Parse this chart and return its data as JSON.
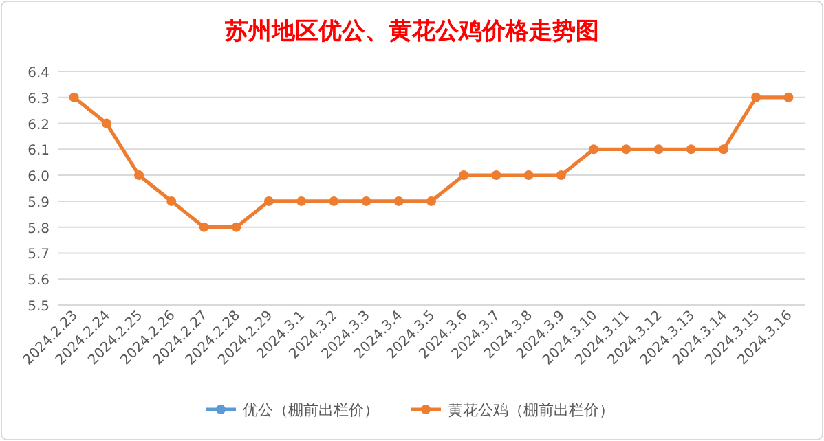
{
  "chart_data": {
    "type": "line",
    "title": "苏州地区优公、黄花公鸡价格走势图",
    "categories": [
      "2024.2.23",
      "2024.2.24",
      "2024.2.25",
      "2024.2.26",
      "2024.2.27",
      "2024.2.28",
      "2024.2.29",
      "2024.3.1",
      "2024.3.2",
      "2024.3.3",
      "2024.3.4",
      "2024.3.5",
      "2024.3.6",
      "2024.3.7",
      "2024.3.8",
      "2024.3.9",
      "2024.3.10",
      "2024.3.11",
      "2024.3.12",
      "2024.3.13",
      "2024.3.14",
      "2024.3.15",
      "2024.3.16"
    ],
    "series": [
      {
        "name": "优公（棚前出栏价）",
        "color": "#5b9bd5",
        "values": [
          null,
          null,
          null,
          null,
          null,
          null,
          null,
          null,
          null,
          null,
          null,
          null,
          null,
          null,
          null,
          null,
          null,
          null,
          null,
          null,
          null,
          null,
          null
        ]
      },
      {
        "name": "黄花公鸡（棚前出栏价）",
        "color": "#ed7d31",
        "values": [
          6.3,
          6.2,
          6.0,
          5.9,
          5.8,
          5.8,
          5.9,
          5.9,
          5.9,
          5.9,
          5.9,
          5.9,
          6.0,
          6.0,
          6.0,
          6.0,
          6.1,
          6.1,
          6.1,
          6.1,
          6.1,
          6.3,
          6.3
        ]
      }
    ],
    "ylim": [
      5.5,
      6.4
    ],
    "yticks": [
      5.5,
      5.6,
      5.7,
      5.8,
      5.9,
      {
        "value": 6,
        "label": "6.0"
      },
      6.1,
      6.2,
      6.3,
      6.4
    ],
    "grid": "y",
    "legend": "bottom",
    "marker": "circle",
    "line_style": "solid"
  }
}
